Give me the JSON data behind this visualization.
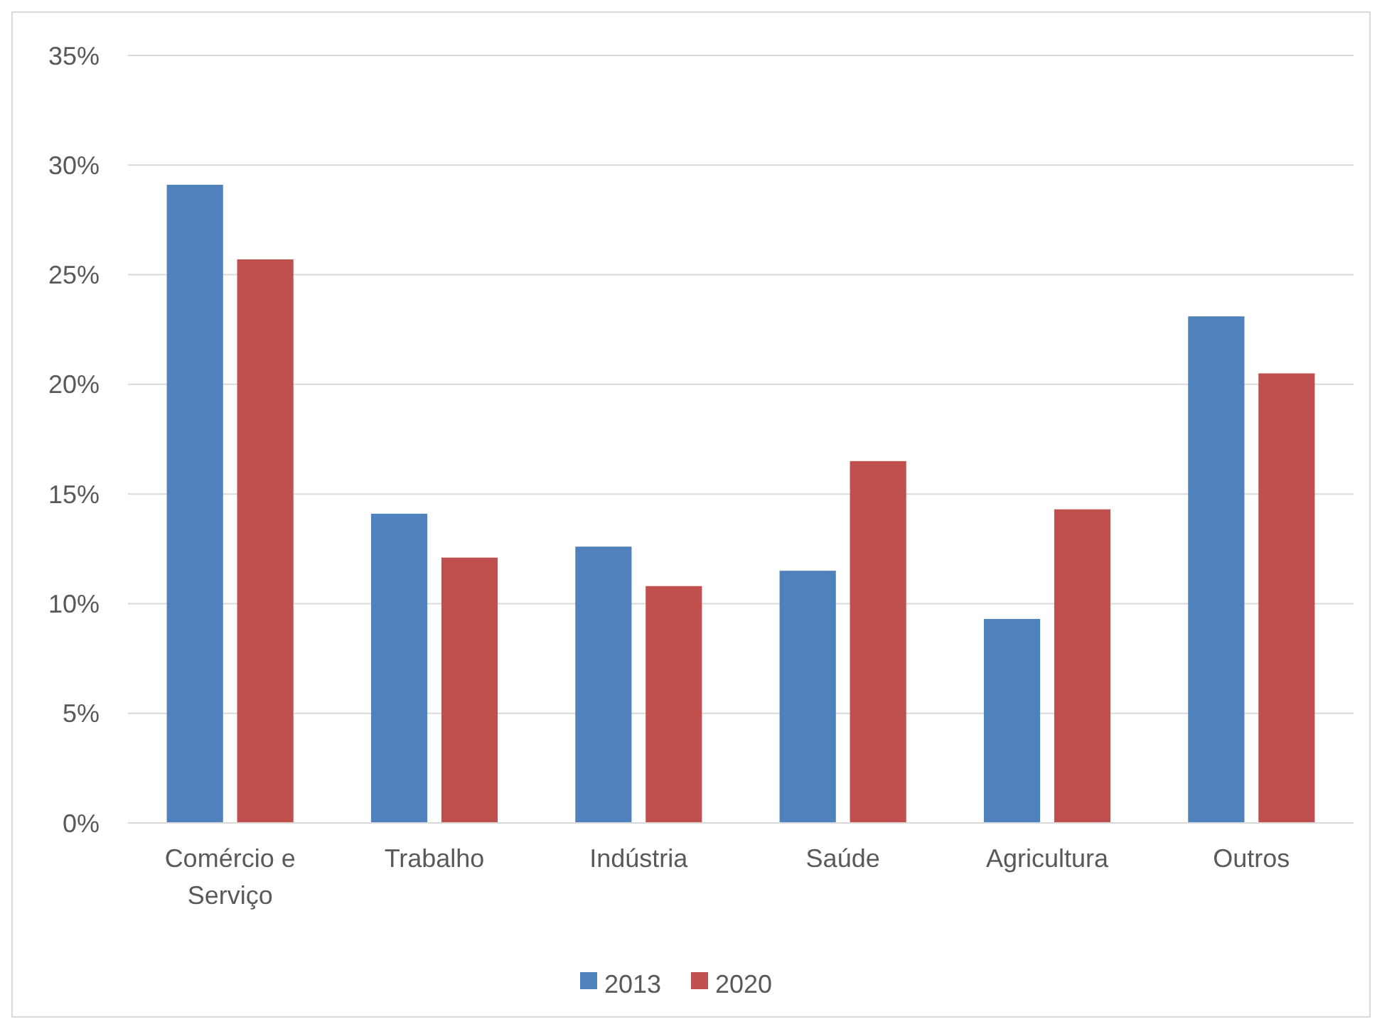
{
  "chart_data": {
    "type": "bar",
    "categories": [
      "Comércio e Serviço",
      "Trabalho",
      "Indústria",
      "Saúde",
      "Agricultura",
      "Outros"
    ],
    "series": [
      {
        "name": "2013",
        "color": "#4f81bd",
        "values": [
          29.1,
          14.1,
          12.6,
          11.5,
          9.3,
          23.1
        ]
      },
      {
        "name": "2020",
        "color": "#c0504d",
        "values": [
          25.7,
          12.1,
          10.8,
          16.5,
          14.3,
          20.5
        ]
      }
    ],
    "ylim": [
      0,
      35
    ],
    "yticks": [
      {
        "value": 0,
        "label": "0%"
      },
      {
        "value": 5,
        "label": "5%"
      },
      {
        "value": 10,
        "label": "10%"
      },
      {
        "value": 15,
        "label": "15%"
      },
      {
        "value": 20,
        "label": "20%"
      },
      {
        "value": 25,
        "label": "25%"
      },
      {
        "value": 30,
        "label": "30%"
      },
      {
        "value": 35,
        "label": "35%"
      }
    ],
    "grid": "y",
    "legend": "bottom"
  }
}
